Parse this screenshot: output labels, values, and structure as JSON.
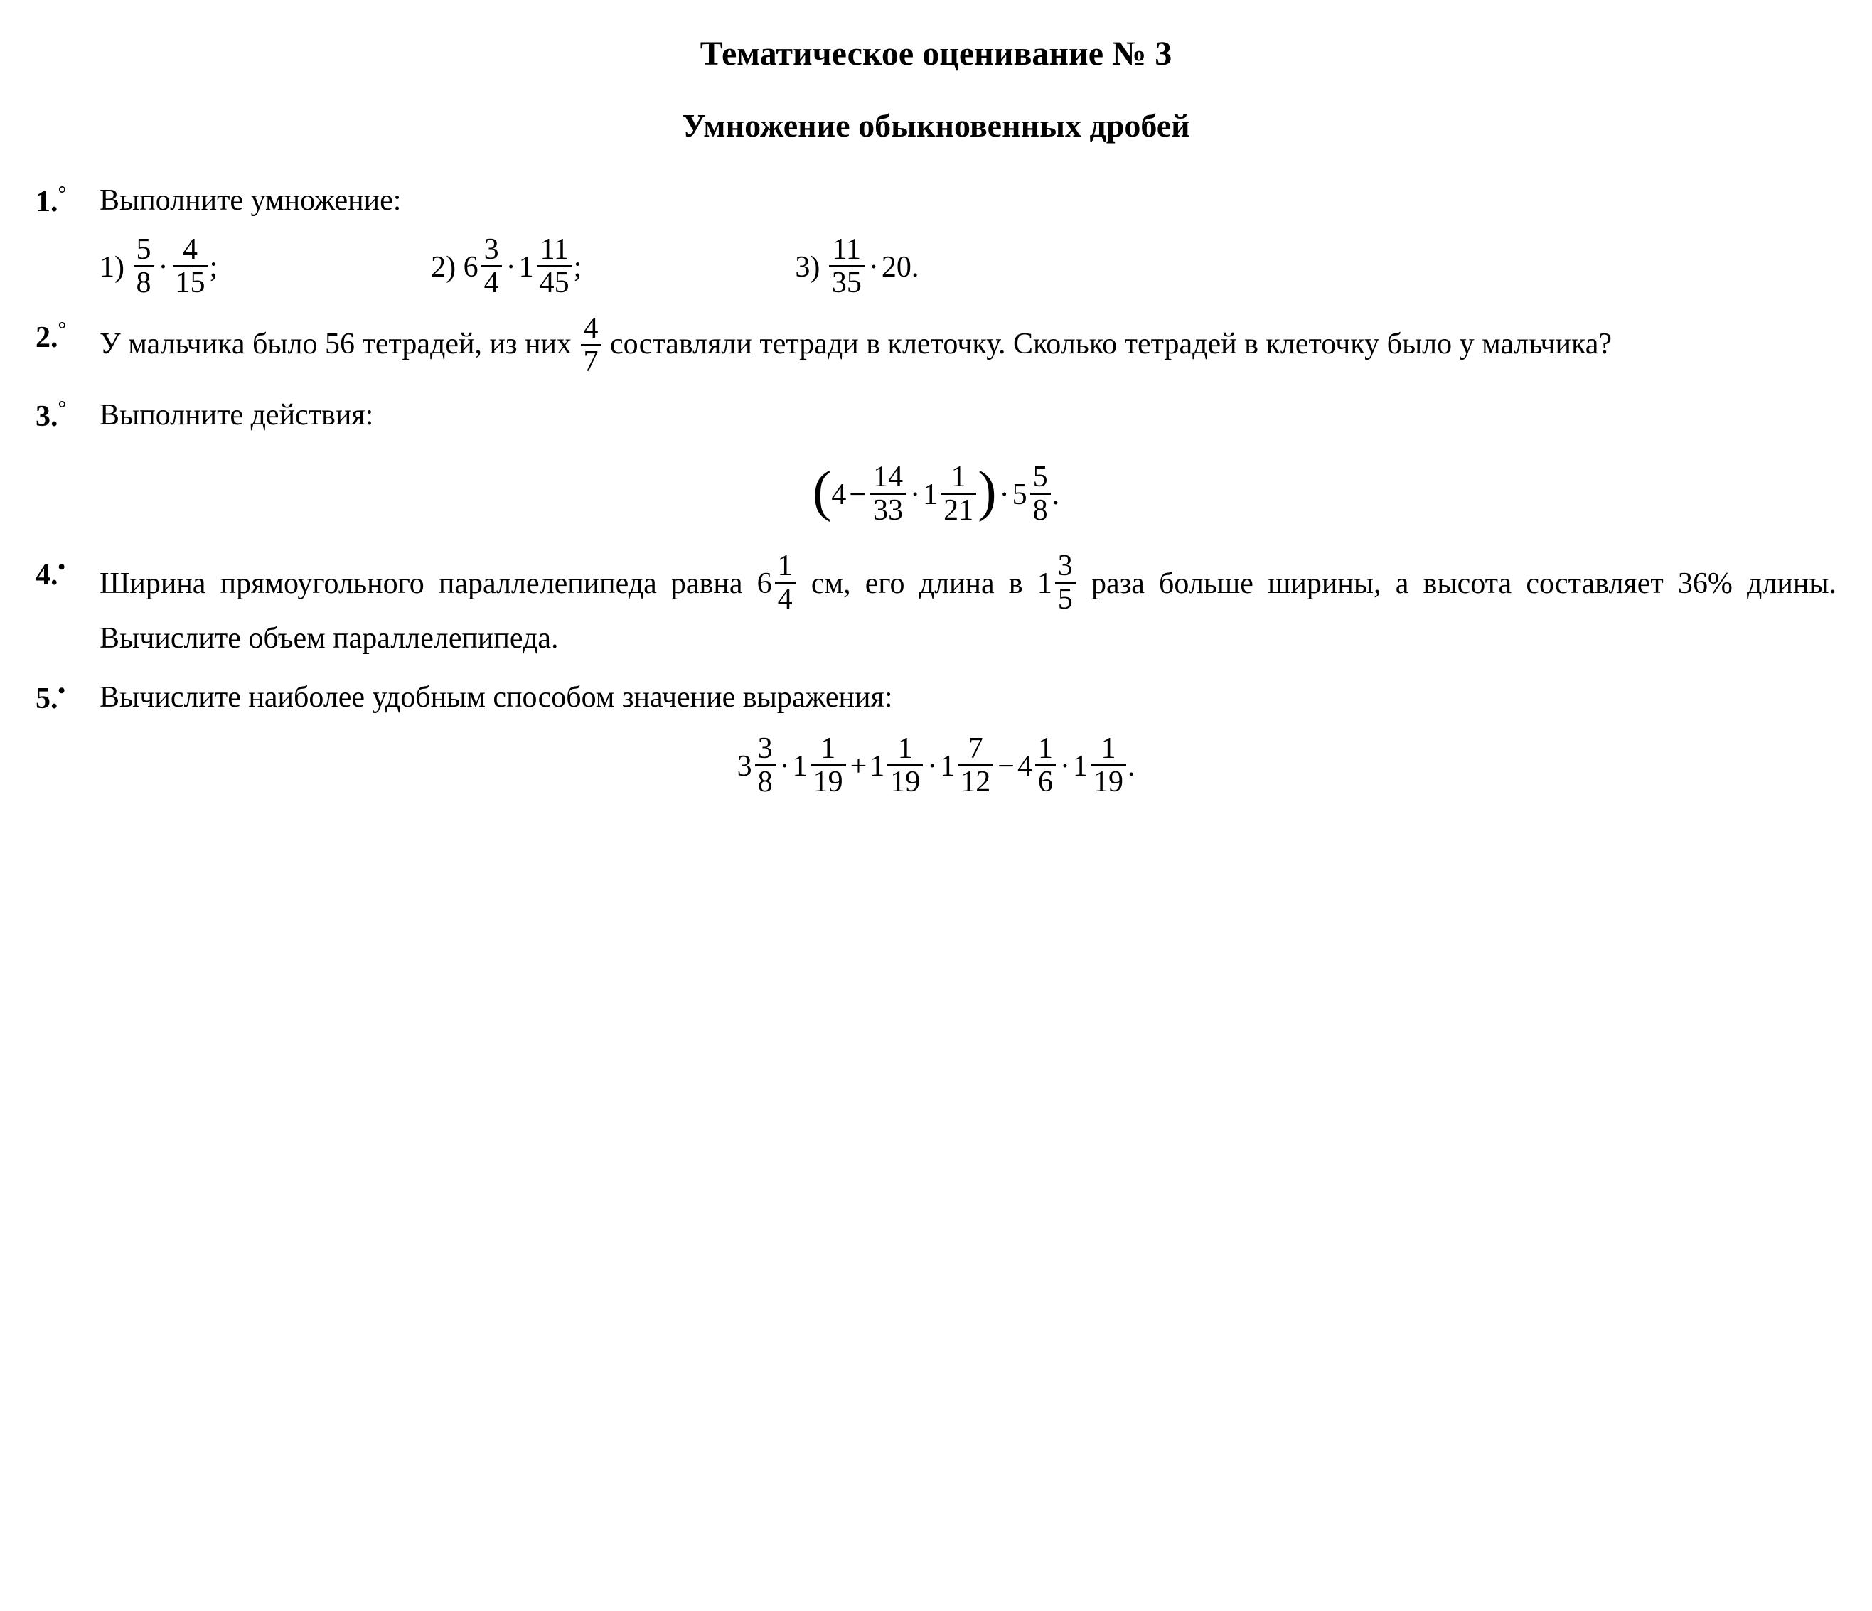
{
  "title": "Тематическое оценивание № 3",
  "subtitle": "Умножение обыкновенных дробей",
  "p1": {
    "num": "1.",
    "mark": "°",
    "text": "Выполните умножение:",
    "s1": {
      "label": "1)",
      "a_n": "5",
      "a_d": "8",
      "b_n": "4",
      "b_d": "15",
      "tail": ";"
    },
    "s2": {
      "label": "2)",
      "a_w": "6",
      "a_n": "3",
      "a_d": "4",
      "b_w": "1",
      "b_n": "11",
      "b_d": "45",
      "tail": ";"
    },
    "s3": {
      "label": "3)",
      "a_n": "11",
      "a_d": "35",
      "b": "20",
      "tail": "."
    }
  },
  "p2": {
    "num": "2.",
    "mark": "°",
    "t1": "У мальчика было 56 тетрадей, из них ",
    "f_n": "4",
    "f_d": "7",
    "t2": " составляли тетради в клеточку. Сколько тетрадей в клеточку было у мальчика?"
  },
  "p3": {
    "num": "3.",
    "mark": "°",
    "text": "Выполните действия:",
    "expr": {
      "a": "4",
      "b_n": "14",
      "b_d": "33",
      "c_w": "1",
      "c_n": "1",
      "c_d": "21",
      "d_w": "5",
      "d_n": "5",
      "d_d": "8",
      "tail": "."
    }
  },
  "p4": {
    "num": "4.",
    "mark": "•",
    "t1": "Ширина прямоугольного параллелепипеда равна ",
    "a_w": "6",
    "a_n": "1",
    "a_d": "4",
    "t2": " см, его длина в ",
    "b_w": "1",
    "b_n": "3",
    "b_d": "5",
    "t3": " раза больше ширины, а высота составляет 36% длины. Вычислите объем параллелепипеда."
  },
  "p5": {
    "num": "5.",
    "mark": "•",
    "text": "Вычислите наиболее удобным способом значение выражения:",
    "expr": {
      "a_w": "3",
      "a_n": "3",
      "a_d": "8",
      "b_w": "1",
      "b_n": "1",
      "b_d": "19",
      "c_w": "1",
      "c_n": "1",
      "c_d": "19",
      "d_w": "1",
      "d_n": "7",
      "d_d": "12",
      "e_w": "4",
      "e_n": "1",
      "e_d": "6",
      "f_w": "1",
      "f_n": "1",
      "f_d": "19",
      "tail": "."
    }
  }
}
